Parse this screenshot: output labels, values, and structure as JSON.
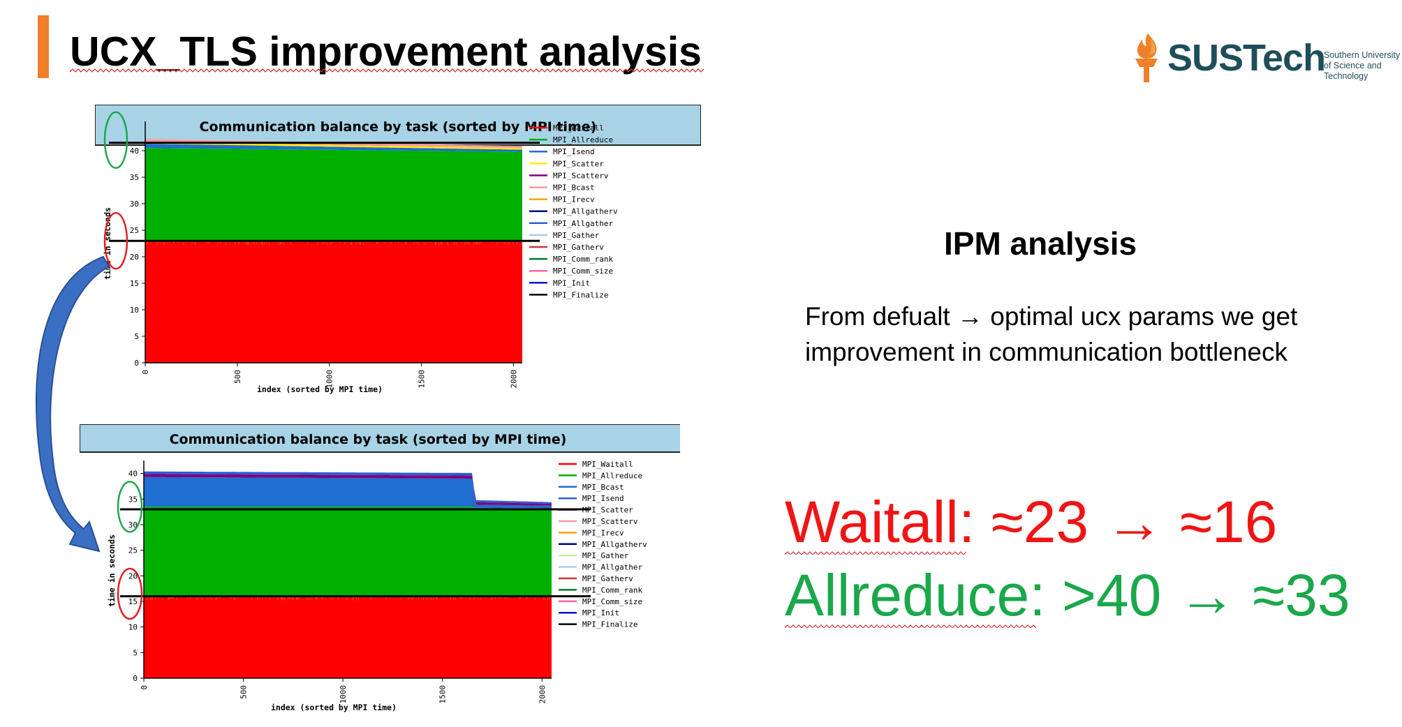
{
  "slide": {
    "title": "UCX_TLS improvement analysis",
    "accent_color": "#f07f2a"
  },
  "logo": {
    "name": "SUSTech",
    "subtitle_lines": [
      "Southern University",
      "of Science and",
      "Technology"
    ],
    "icon": "torch-flame-icon"
  },
  "analysis": {
    "heading": "IPM analysis",
    "body": "From defualt → optimal ucx params we get improvement in communication bottleneck"
  },
  "results": {
    "waitall": {
      "label": "Waitall",
      "value": ": ≈23 → ≈16",
      "color": "#f01414"
    },
    "allreduce": {
      "label": "Allreduce",
      "value": ": >40 → ≈33",
      "color": "#1aa84a"
    }
  },
  "chart_data": [
    {
      "type": "area",
      "title": "Communication balance by task (sorted by MPI time)",
      "xlabel": "index (sorted by MPI time)",
      "ylabel": "time in seconds",
      "xlim": [
        0,
        2048
      ],
      "ylim": [
        0,
        45
      ],
      "x_ticks": [
        "0",
        "500",
        "1000",
        "1500",
        "2000"
      ],
      "y_ticks": [
        "0",
        "5",
        "10",
        "15",
        "20",
        "25",
        "30",
        "35",
        "40"
      ],
      "x": [
        0,
        2048
      ],
      "legend": [
        "MPI_Waitall",
        "MPI_Allreduce",
        "MPI_Isend",
        "MPI_Scatter",
        "MPI_Scatterv",
        "MPI_Bcast",
        "MPI_Irecv",
        "MPI_Allgatherv",
        "MPI_Allgather",
        "MPI_Gather",
        "MPI_Gatherv",
        "MPI_Comm_rank",
        "MPI_Comm_size",
        "MPI_Init",
        "MPI_Finalize"
      ],
      "legend_colors": [
        "#ff0000",
        "#00b000",
        "#1f6fd0",
        "#ffee00",
        "#800080",
        "#ff9999",
        "#ffa500",
        "#000080",
        "#2b5fd0",
        "#aaccee",
        "#cc3333",
        "#007a33",
        "#ff66aa",
        "#1010cc",
        "#000000"
      ],
      "series": [
        {
          "name": "MPI_Waitall",
          "values": [
            23,
            23
          ]
        },
        {
          "name": "MPI_Allreduce",
          "values": [
            17.5,
            16.8
          ]
        },
        {
          "name": "MPI_Isend",
          "values": [
            0.8,
            0.4
          ]
        },
        {
          "name": "MPI_Scatter",
          "values": [
            0.4,
            0.3
          ]
        },
        {
          "name": "MPI_Bcast",
          "values": [
            0.5,
            0.4
          ]
        }
      ],
      "annotations": [
        {
          "type": "h-line",
          "y": 41.5
        },
        {
          "type": "h-line",
          "y": 23
        },
        {
          "type": "ellipse",
          "color": "#1aa84a",
          "y_center": 42
        },
        {
          "type": "ellipse",
          "color": "#e02020",
          "y_center": 23
        }
      ],
      "grid": false,
      "legend_position": "right"
    },
    {
      "type": "area",
      "title": "Communication balance by task (sorted by MPI time)",
      "xlabel": "index (sorted by MPI time)",
      "ylabel": "time in seconds",
      "xlim": [
        0,
        2048
      ],
      "ylim": [
        0,
        42
      ],
      "x_ticks": [
        "0",
        "500",
        "1000",
        "1500",
        "2000"
      ],
      "y_ticks": [
        "0",
        "5",
        "10",
        "15",
        "20",
        "25",
        "30",
        "35",
        "40"
      ],
      "x": [
        0,
        1650,
        1665,
        2048
      ],
      "legend": [
        "MPI_Waitall",
        "MPI_Allreduce",
        "MPI_Bcast",
        "MPI_Isend",
        "MPI_Scatter",
        "MPI_Scatterv",
        "MPI_Irecv",
        "MPI_Allgatherv",
        "MPI_Gather",
        "MPI_Allgather",
        "MPI_Gatherv",
        "MPI_Comm_rank",
        "MPI_Comm_size",
        "MPI_Init",
        "MPI_Finalize"
      ],
      "legend_colors": [
        "#ff0000",
        "#00b000",
        "#1f6fd0",
        "#2b5fd0",
        "#800080",
        "#ff9999",
        "#ffa500",
        "#000080",
        "#ccee99",
        "#aaccee",
        "#cc3333",
        "#007a33",
        "#ff66aa",
        "#1010cc",
        "#000000"
      ],
      "series": [
        {
          "name": "MPI_Waitall",
          "values": [
            16,
            16,
            16,
            16
          ]
        },
        {
          "name": "MPI_Allreduce",
          "values": [
            17.5,
            17.5,
            17.3,
            17.2
          ]
        },
        {
          "name": "MPI_Bcast",
          "values": [
            5.8,
            5.5,
            0.6,
            0.5
          ]
        },
        {
          "name": "MPI_Scatter",
          "values": [
            0.6,
            0.6,
            0.5,
            0.4
          ]
        },
        {
          "name": "MPI_Isend",
          "values": [
            0.5,
            0.5,
            0.4,
            0.3
          ]
        }
      ],
      "annotations": [
        {
          "type": "h-line",
          "y": 33
        },
        {
          "type": "h-line",
          "y": 16
        },
        {
          "type": "ellipse",
          "color": "#1aa84a",
          "y_center": 33.5
        },
        {
          "type": "ellipse",
          "color": "#e02020",
          "y_center": 16.5
        }
      ],
      "grid": false,
      "legend_position": "right"
    }
  ]
}
